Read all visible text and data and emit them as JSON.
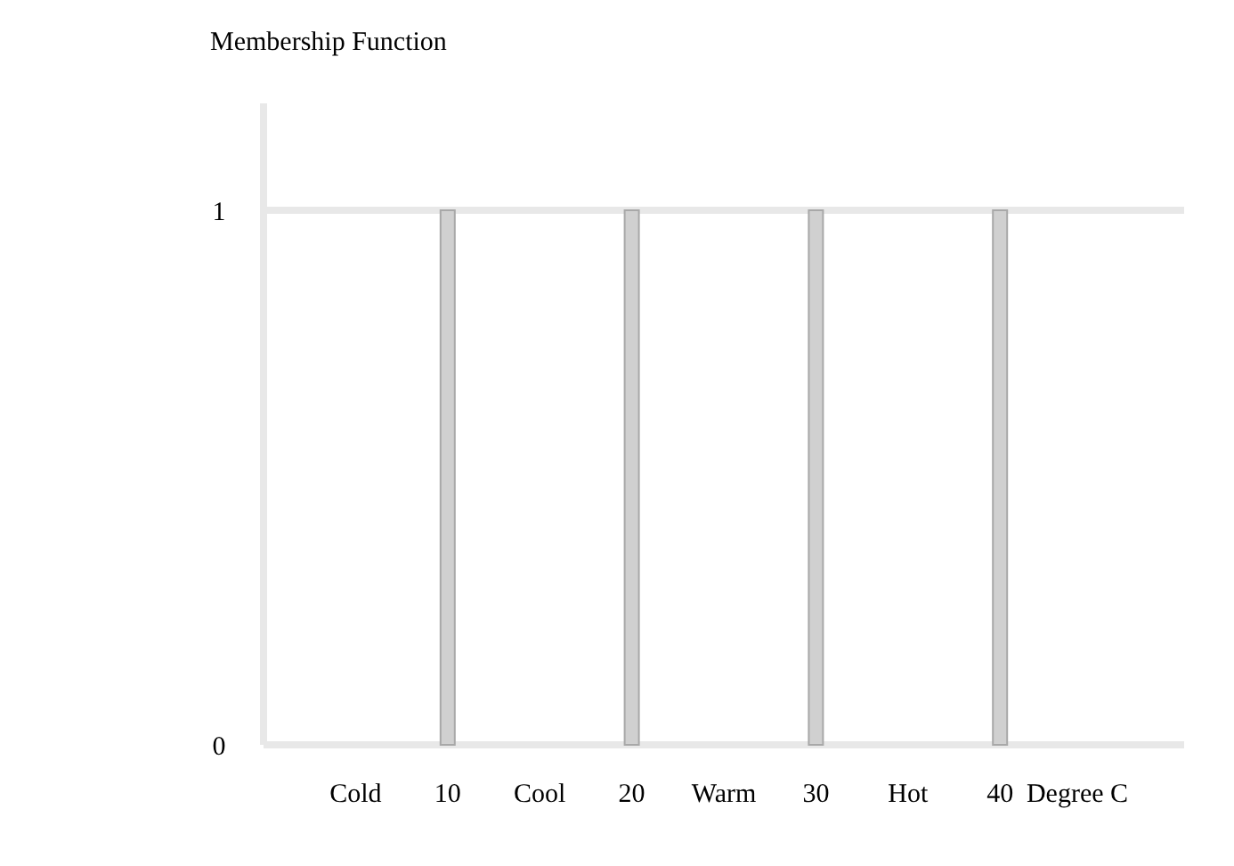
{
  "chart_data": {
    "type": "bar",
    "ylabel": "Membership Function",
    "xlabel": "Degree C",
    "x": [
      10,
      20,
      30,
      40
    ],
    "values": [
      1,
      1,
      1,
      1
    ],
    "color": "#d0d0d0",
    "xlim": [
      0,
      50
    ],
    "xticks": [
      {
        "value": 5,
        "label": "Cold"
      },
      10,
      {
        "value": 15,
        "label": "Cool"
      },
      20,
      {
        "value": 25,
        "label": "Warm"
      },
      30,
      {
        "value": 35,
        "label": "Hot"
      },
      40
    ],
    "ylim": [
      0,
      1.2
    ],
    "yticks": [
      0,
      1
    ],
    "grid": "y"
  }
}
